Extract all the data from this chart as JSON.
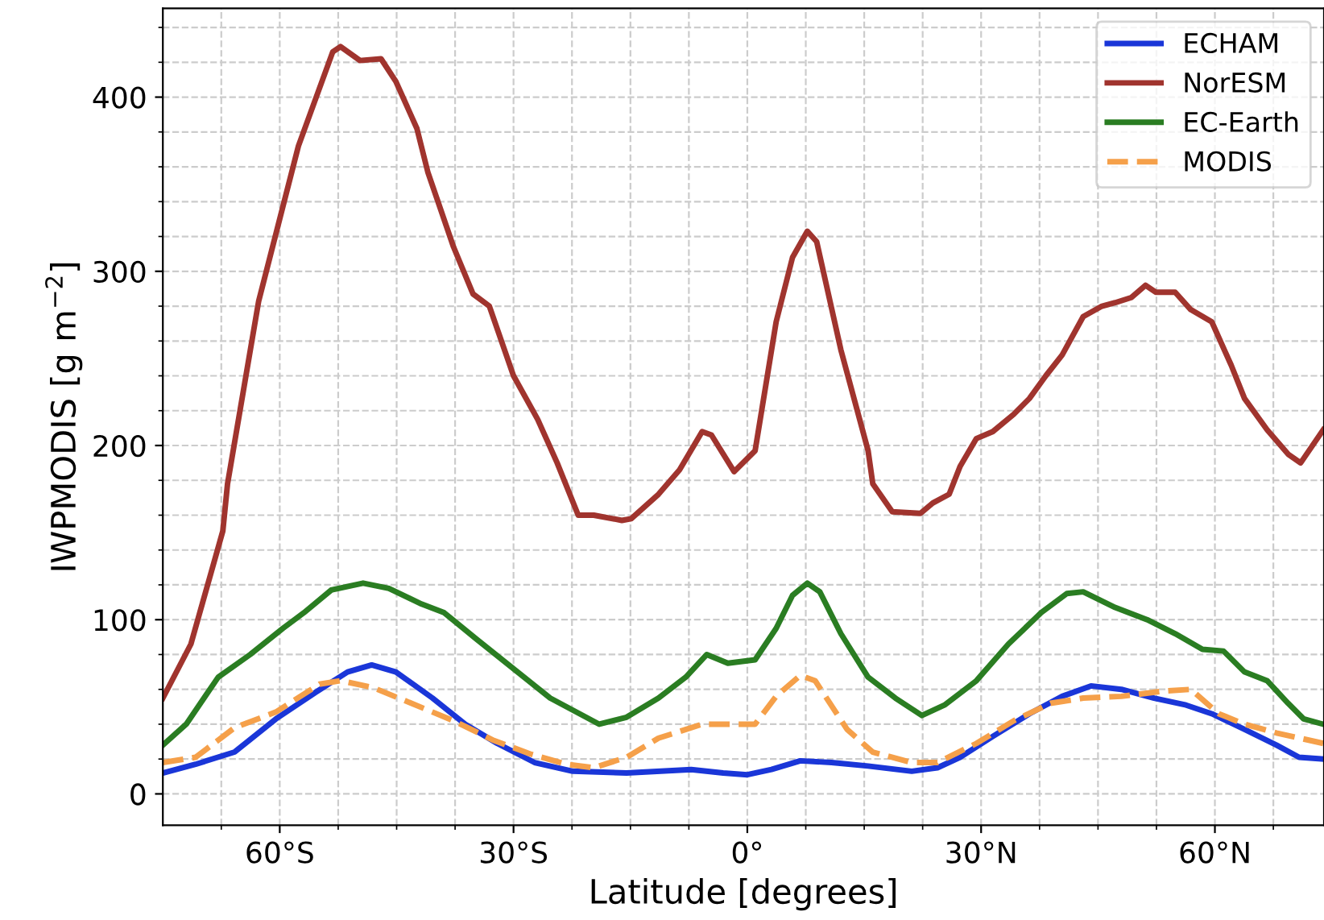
{
  "chart_data": {
    "type": "line",
    "xlabel": "Latitude [degrees]",
    "ylabel": "IWPMODIS [g m$^{−2}$]",
    "xlim": [
      -75,
      74
    ],
    "ylim": [
      -18,
      451
    ],
    "xticks": [
      {
        "value": -67.5,
        "label": null
      },
      {
        "value": -60,
        "label": "60°S"
      },
      {
        "value": -52.5,
        "label": null
      },
      {
        "value": -45,
        "label": null
      },
      {
        "value": -37.5,
        "label": null
      },
      {
        "value": -30,
        "label": "30°S"
      },
      {
        "value": -22.5,
        "label": null
      },
      {
        "value": -15,
        "label": null
      },
      {
        "value": -7.5,
        "label": null
      },
      {
        "value": 0,
        "label": "0°"
      },
      {
        "value": 7.5,
        "label": null
      },
      {
        "value": 15,
        "label": null
      },
      {
        "value": 22.5,
        "label": null
      },
      {
        "value": 30,
        "label": "30°N"
      },
      {
        "value": 37.5,
        "label": null
      },
      {
        "value": 45,
        "label": null
      },
      {
        "value": 52.5,
        "label": null
      },
      {
        "value": 60,
        "label": "60°N"
      },
      {
        "value": 67.5,
        "label": null
      }
    ],
    "yticks": [
      0,
      {
        "value": 20,
        "label": null
      },
      {
        "value": 40,
        "label": null
      },
      {
        "value": 60,
        "label": null
      },
      {
        "value": 80,
        "label": null
      },
      100,
      {
        "value": 120,
        "label": null
      },
      {
        "value": 140,
        "label": null
      },
      {
        "value": 160,
        "label": null
      },
      {
        "value": 180,
        "label": null
      },
      200,
      {
        "value": 220,
        "label": null
      },
      {
        "value": 240,
        "label": null
      },
      {
        "value": 260,
        "label": null
      },
      {
        "value": 280,
        "label": null
      },
      300,
      {
        "value": 320,
        "label": null
      },
      {
        "value": 340,
        "label": null
      },
      {
        "value": 360,
        "label": null
      },
      {
        "value": 380,
        "label": null
      },
      400,
      {
        "value": 420,
        "label": null
      },
      {
        "value": 440,
        "label": null
      }
    ],
    "grid": true,
    "legend": "top right",
    "line_style": "solid",
    "series": [
      {
        "name": "ECHAM",
        "color": "#1a36d8",
        "x": [
          -75,
          -70.8,
          -65.8,
          -60.5,
          -55.5,
          -51.3,
          -48.2,
          -45.1,
          -40.4,
          -36.2,
          -32.1,
          -27.3,
          -22.4,
          -15.5,
          -7.2,
          -3.1,
          0,
          3.1,
          6.8,
          10.8,
          15.5,
          21.1,
          24.4,
          27.3,
          31.5,
          36.2,
          40.4,
          44.1,
          48,
          52.2,
          56.3,
          59.6,
          63.8,
          67.9,
          70.8,
          73.9
        ],
        "values": [
          12,
          17,
          24,
          43,
          58,
          70,
          74,
          70,
          55,
          40,
          29,
          18,
          13,
          12,
          14,
          12,
          11,
          14,
          19,
          18,
          16,
          13,
          15,
          21,
          33,
          46,
          56,
          62,
          60,
          55,
          51,
          46,
          37,
          28,
          21,
          20
        ]
      },
      {
        "name": "NorESM",
        "color": "#a0342e",
        "x": [
          -75,
          -71.4,
          -67.3,
          -66.7,
          -62.7,
          -57.6,
          -53.2,
          -52.2,
          -49.7,
          -47,
          -45.1,
          -42.4,
          -41,
          -37.7,
          -35.2,
          -33.1,
          -30,
          -26.9,
          -24.4,
          -21.7,
          -19.7,
          -16.1,
          -14.9,
          -11.4,
          -8.7,
          -5.8,
          -4.6,
          -1.7,
          1,
          3.7,
          5.8,
          7.7,
          8.9,
          12,
          15.5,
          16.1,
          18.6,
          22.2,
          23.8,
          25.9,
          27.3,
          29.4,
          31.5,
          34.2,
          36.2,
          38.3,
          40.4,
          43.1,
          45.5,
          47.2,
          49.3,
          51.1,
          52.4,
          54.9,
          56.9,
          59.6,
          62.1,
          63.8,
          66.7,
          69.4,
          71,
          73.9
        ],
        "values": [
          55,
          86,
          151,
          178,
          283,
          372,
          426,
          429,
          421,
          422,
          409,
          382,
          357,
          314,
          287,
          280,
          240,
          215,
          190,
          160,
          160,
          157,
          158,
          172,
          186,
          208,
          206,
          185,
          197,
          271,
          308,
          323,
          317,
          255,
          197,
          178,
          162,
          161,
          167,
          172,
          188,
          204,
          208,
          218,
          227,
          240,
          252,
          274,
          280,
          282,
          285,
          292,
          288,
          288,
          278,
          271,
          246,
          227,
          209,
          195,
          190,
          209
        ]
      },
      {
        "name": "EC-Earth",
        "color": "#2a7d22",
        "x": [
          -75,
          -72,
          -67.9,
          -63.8,
          -59.6,
          -56.9,
          -53.4,
          -49.3,
          -46,
          -41.8,
          -38.9,
          -34.8,
          -30.6,
          -25.3,
          -19,
          -15.5,
          -11.4,
          -7.9,
          -5.2,
          -2.5,
          1,
          3.7,
          5.8,
          7.7,
          9.3,
          12,
          15.5,
          19,
          22.4,
          25.3,
          29.4,
          33.5,
          37.7,
          41,
          43.1,
          47.2,
          51.3,
          54.9,
          58.4,
          61.1,
          63.8,
          66.7,
          69.4,
          71.4,
          73.9
        ],
        "values": [
          28,
          40,
          67,
          80,
          95,
          104,
          117,
          121,
          118,
          109,
          104,
          89,
          74,
          55,
          40,
          44,
          55,
          67,
          80,
          75,
          77,
          95,
          114,
          121,
          116,
          92,
          67,
          55,
          45,
          51,
          65,
          86,
          104,
          115,
          116,
          107,
          100,
          92,
          83,
          82,
          70,
          65,
          52,
          43,
          40
        ]
      },
      {
        "name": "MODIS",
        "color": "#f5a04a",
        "line_style": "dashed",
        "x": [
          -75,
          -70.8,
          -65.8,
          -60.5,
          -54.9,
          -52.2,
          -48,
          -43.1,
          -37.7,
          -32.7,
          -27.9,
          -23.2,
          -19.7,
          -15.5,
          -11.4,
          -5.8,
          1,
          3.7,
          6.8,
          8.7,
          12.8,
          16.1,
          21.1,
          24.4,
          29.4,
          34.2,
          38.9,
          43.1,
          48,
          53.4,
          56.9,
          60.5,
          63.8,
          67.9,
          73.9
        ],
        "values": [
          18,
          21,
          38,
          47,
          63,
          65,
          61,
          52,
          42,
          31,
          23,
          17,
          15,
          21,
          32,
          40,
          40,
          56,
          68,
          65,
          37,
          24,
          18,
          18,
          29,
          42,
          52,
          55,
          56,
          59,
          60,
          46,
          40,
          35,
          29
        ]
      }
    ]
  }
}
